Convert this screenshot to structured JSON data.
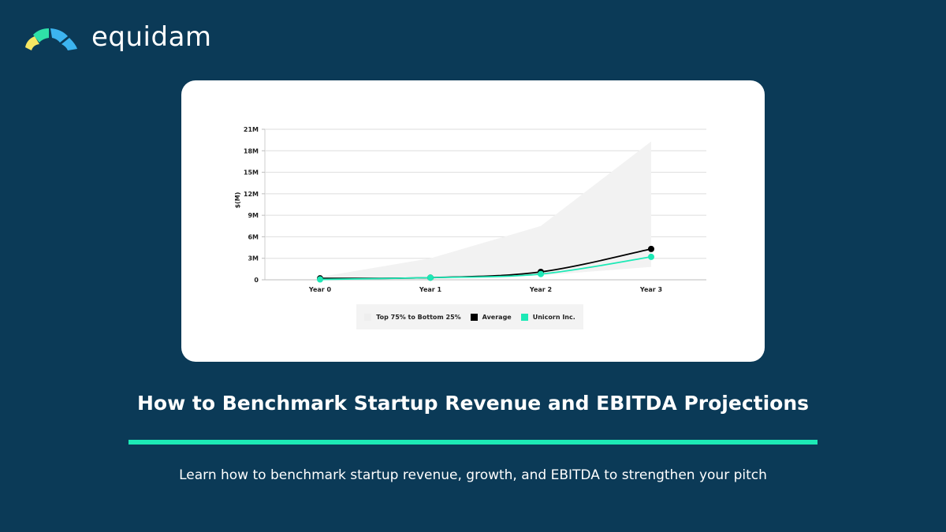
{
  "brand": {
    "name": "equidam"
  },
  "heading": {
    "title": "How to Benchmark Startup Revenue and EBITDA Projections",
    "subtitle": "Learn how to benchmark startup revenue, growth, and EBITDA to strengthen your pitch"
  },
  "colors": {
    "background": "#0b3a57",
    "accent": "#1de9b6",
    "average": "#000000",
    "unicorn": "#1de9b6",
    "range": "#f2f2f2"
  },
  "chart_data": {
    "type": "line",
    "categories": [
      "Year 0",
      "Year 1",
      "Year 2",
      "Year 3"
    ],
    "ylabel": "$(M)",
    "ylim": [
      0,
      21
    ],
    "yticks": [
      0,
      3,
      6,
      9,
      12,
      15,
      18,
      21
    ],
    "ytick_labels": [
      "0",
      "3M",
      "6M",
      "9M",
      "12M",
      "15M",
      "18M",
      "21M"
    ],
    "grid": true,
    "legend": "bottom",
    "band": {
      "name": "Top 75% to Bottom 25%",
      "upper": [
        0.4,
        3.0,
        7.5,
        19.3
      ],
      "lower": [
        0.0,
        0.1,
        0.6,
        1.8
      ]
    },
    "series": [
      {
        "name": "Average",
        "values": [
          0.2,
          0.3,
          1.1,
          4.3
        ]
      },
      {
        "name": "Unicorn Inc.",
        "values": [
          0.05,
          0.3,
          0.8,
          3.2
        ]
      }
    ]
  }
}
